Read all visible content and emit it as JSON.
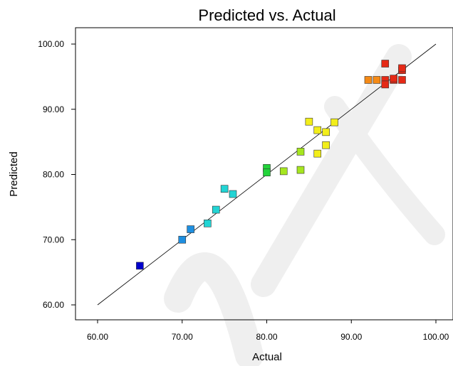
{
  "chart_data": {
    "type": "scatter",
    "title": "Predicted vs. Actual",
    "xlabel": "Actual",
    "ylabel": "Predicted",
    "xlim": [
      60,
      100
    ],
    "ylim": [
      60,
      100
    ],
    "x_ticks": [
      "60.00",
      "70.00",
      "80.00",
      "90.00",
      "100.00"
    ],
    "y_ticks": [
      "60.00",
      "70.00",
      "80.00",
      "90.00",
      "100.00"
    ],
    "grid": false,
    "legend": "none",
    "reference_line": {
      "from": [
        60,
        60
      ],
      "to": [
        100,
        100
      ]
    },
    "color_scale": [
      "#0000cc",
      "#1e8fe0",
      "#22d4d4",
      "#22d43a",
      "#a6e61f",
      "#f2ee1a",
      "#f58a16",
      "#e52916"
    ],
    "points": [
      {
        "x": 65.0,
        "y": 66.0
      },
      {
        "x": 70.0,
        "y": 70.0
      },
      {
        "x": 71.0,
        "y": 71.6
      },
      {
        "x": 73.0,
        "y": 72.5
      },
      {
        "x": 74.0,
        "y": 74.6
      },
      {
        "x": 75.0,
        "y": 77.8
      },
      {
        "x": 76.0,
        "y": 77.0
      },
      {
        "x": 80.0,
        "y": 81.0
      },
      {
        "x": 80.0,
        "y": 80.3
      },
      {
        "x": 82.0,
        "y": 80.5
      },
      {
        "x": 84.0,
        "y": 80.7
      },
      {
        "x": 84.0,
        "y": 83.5
      },
      {
        "x": 85.0,
        "y": 88.1
      },
      {
        "x": 86.0,
        "y": 86.8
      },
      {
        "x": 86.0,
        "y": 83.2
      },
      {
        "x": 87.0,
        "y": 86.5
      },
      {
        "x": 87.0,
        "y": 84.5
      },
      {
        "x": 88.0,
        "y": 88.0
      },
      {
        "x": 92.0,
        "y": 94.5
      },
      {
        "x": 93.0,
        "y": 94.5
      },
      {
        "x": 94.0,
        "y": 94.5
      },
      {
        "x": 94.0,
        "y": 97.0
      },
      {
        "x": 94.0,
        "y": 93.8
      },
      {
        "x": 95.0,
        "y": 94.5
      },
      {
        "x": 95.0,
        "y": 94.7
      },
      {
        "x": 96.0,
        "y": 94.5
      },
      {
        "x": 96.0,
        "y": 96.0
      },
      {
        "x": 96.0,
        "y": 96.3
      }
    ]
  }
}
